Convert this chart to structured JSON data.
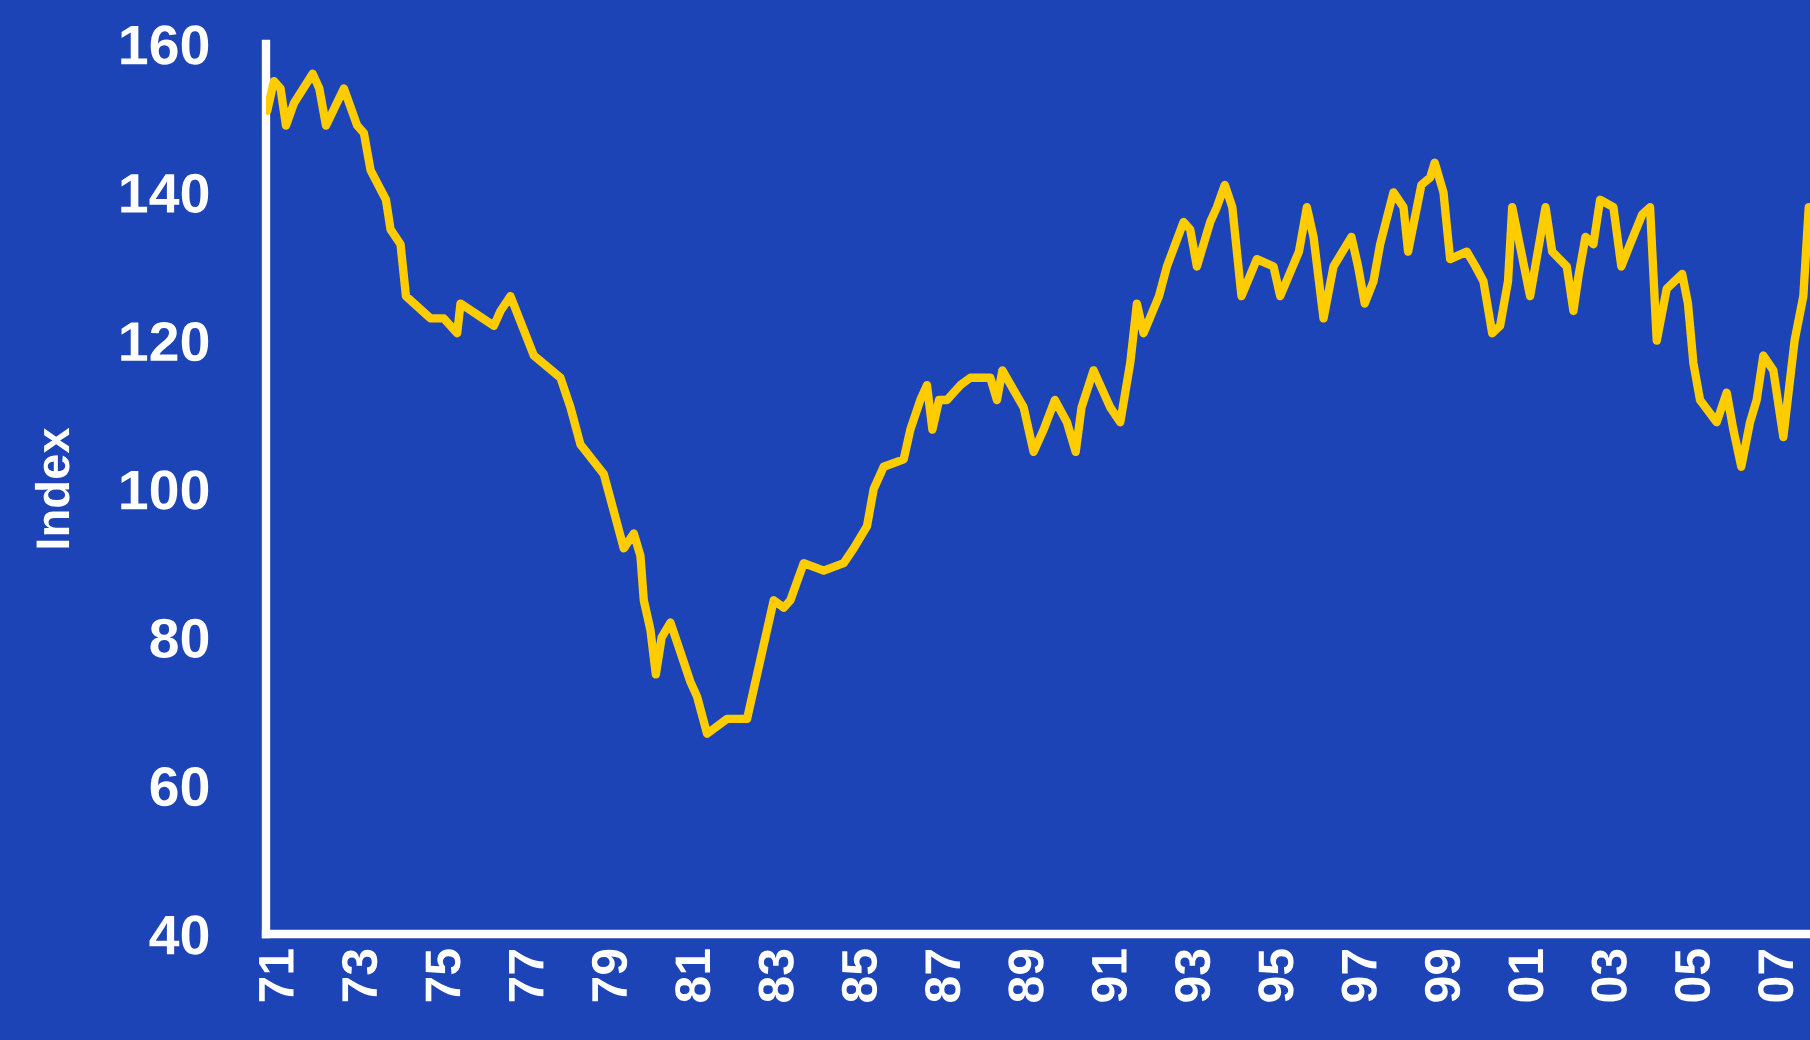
{
  "chart_data": {
    "type": "line",
    "ylabel": "Index",
    "x": [
      1970.68,
      1970.84,
      1971.0,
      1971.13,
      1971.32,
      1971.77,
      1971.93,
      1972.09,
      1972.52,
      1972.84,
      1973.0,
      1973.16,
      1973.53,
      1973.64,
      1973.88,
      1974.01,
      1974.6,
      1974.92,
      1975.24,
      1975.32,
      1976.12,
      1976.28,
      1976.52,
      1977.08,
      1977.72,
      1977.96,
      1978.2,
      1978.76,
      1979.0,
      1979.24,
      1979.48,
      1979.64,
      1979.72,
      1979.88,
      1980.01,
      1980.15,
      1980.36,
      1980.6,
      1980.84,
      1981.0,
      1981.24,
      1981.72,
      1982.2,
      1982.36,
      1982.84,
      1983.08,
      1983.24,
      1983.56,
      1984.04,
      1984.52,
      1984.76,
      1985.08,
      1985.24,
      1985.48,
      1985.96,
      1986.12,
      1986.36,
      1986.52,
      1986.65,
      1986.81,
      1987.0,
      1987.32,
      1987.56,
      1988.04,
      1988.2,
      1988.33,
      1988.84,
      1989.08,
      1989.32,
      1989.59,
      1989.88,
      1990.09,
      1990.23,
      1990.52,
      1990.92,
      1991.16,
      1991.4,
      1991.56,
      1991.72,
      1992.09,
      1992.28,
      1992.68,
      1992.84,
      1993.0,
      1993.32,
      1993.48,
      1993.67,
      1993.85,
      1994.07,
      1994.44,
      1994.84,
      1995.0,
      1995.45,
      1995.64,
      1995.8,
      1996.04,
      1996.28,
      1996.71,
      1996.87,
      1997.03,
      1997.24,
      1997.4,
      1997.72,
      1997.96,
      1998.07,
      1998.39,
      1998.6,
      1998.71,
      1998.92,
      1999.08,
      1999.48,
      1999.69,
      1999.88,
      2000.09,
      2000.28,
      2000.47,
      2000.57,
      2001.0,
      2001.37,
      2001.53,
      2001.88,
      2002.04,
      2002.17,
      2002.33,
      2002.52,
      2002.68,
      2003.0,
      2003.19,
      2003.4,
      2003.69,
      2003.88,
      2004.04,
      2004.28,
      2004.65,
      2004.79,
      2004.92,
      2005.08,
      2005.48,
      2005.72,
      2005.88,
      2006.07,
      2006.28,
      2006.44,
      2006.6,
      2006.84,
      2007.08,
      2007.35,
      2007.56,
      2007.69
    ],
    "series": [
      {
        "color": "#ffcc00",
        "values": [
          151,
          155,
          154,
          149,
          152,
          156,
          154,
          149,
          154,
          149,
          148,
          143,
          139,
          135,
          133,
          126,
          123,
          123,
          121,
          125,
          122,
          124,
          126,
          118,
          115,
          111,
          106,
          102,
          97,
          92,
          94,
          91,
          85,
          81,
          75,
          80,
          82,
          78,
          74,
          72,
          67,
          69,
          69,
          73,
          85,
          84,
          85,
          90,
          89,
          90,
          92,
          95,
          100,
          103,
          104,
          108,
          112,
          114,
          108,
          112,
          112,
          114,
          115,
          115,
          112,
          116,
          111,
          105,
          108,
          112,
          109,
          105,
          111,
          116,
          111,
          109,
          117,
          125,
          121,
          126,
          130,
          136,
          135,
          130,
          136,
          138,
          141,
          138,
          126,
          131,
          130,
          126,
          132,
          138,
          134,
          123,
          130,
          134,
          130,
          125,
          128,
          133,
          140,
          138,
          132,
          141,
          142,
          144,
          140,
          131,
          132,
          130,
          128,
          121,
          122,
          128,
          138,
          126,
          138,
          132,
          130,
          124,
          129,
          134,
          133,
          139,
          138,
          130,
          133,
          137,
          138,
          120,
          127,
          129,
          125,
          117,
          112,
          109,
          113,
          108,
          103,
          109,
          112,
          118,
          116,
          107,
          120,
          126,
          138
        ]
      }
    ],
    "xlim": [
      1970.65,
      2007.72
    ],
    "xticks": [
      {
        "value": 1971,
        "label": "71"
      },
      {
        "value": 1973,
        "label": "73"
      },
      {
        "value": 1975,
        "label": "75"
      },
      {
        "value": 1977,
        "label": "77"
      },
      {
        "value": 1979,
        "label": "79"
      },
      {
        "value": 1981,
        "label": "81"
      },
      {
        "value": 1983,
        "label": "83"
      },
      {
        "value": 1985,
        "label": "85"
      },
      {
        "value": 1987,
        "label": "87"
      },
      {
        "value": 1989,
        "label": "89"
      },
      {
        "value": 1991,
        "label": "91"
      },
      {
        "value": 1993,
        "label": "93"
      },
      {
        "value": 1995,
        "label": "95"
      },
      {
        "value": 1997,
        "label": "97"
      },
      {
        "value": 1999,
        "label": "99"
      },
      {
        "value": 2001,
        "label": "01"
      },
      {
        "value": 2003,
        "label": "03"
      },
      {
        "value": 2005,
        "label": "05"
      },
      {
        "value": 2007,
        "label": "07"
      }
    ],
    "ylim": [
      40,
      160
    ],
    "yticks": [
      40,
      60,
      80,
      100,
      120,
      140,
      160
    ],
    "grid": false,
    "marker": "none",
    "line_style": "solid"
  }
}
